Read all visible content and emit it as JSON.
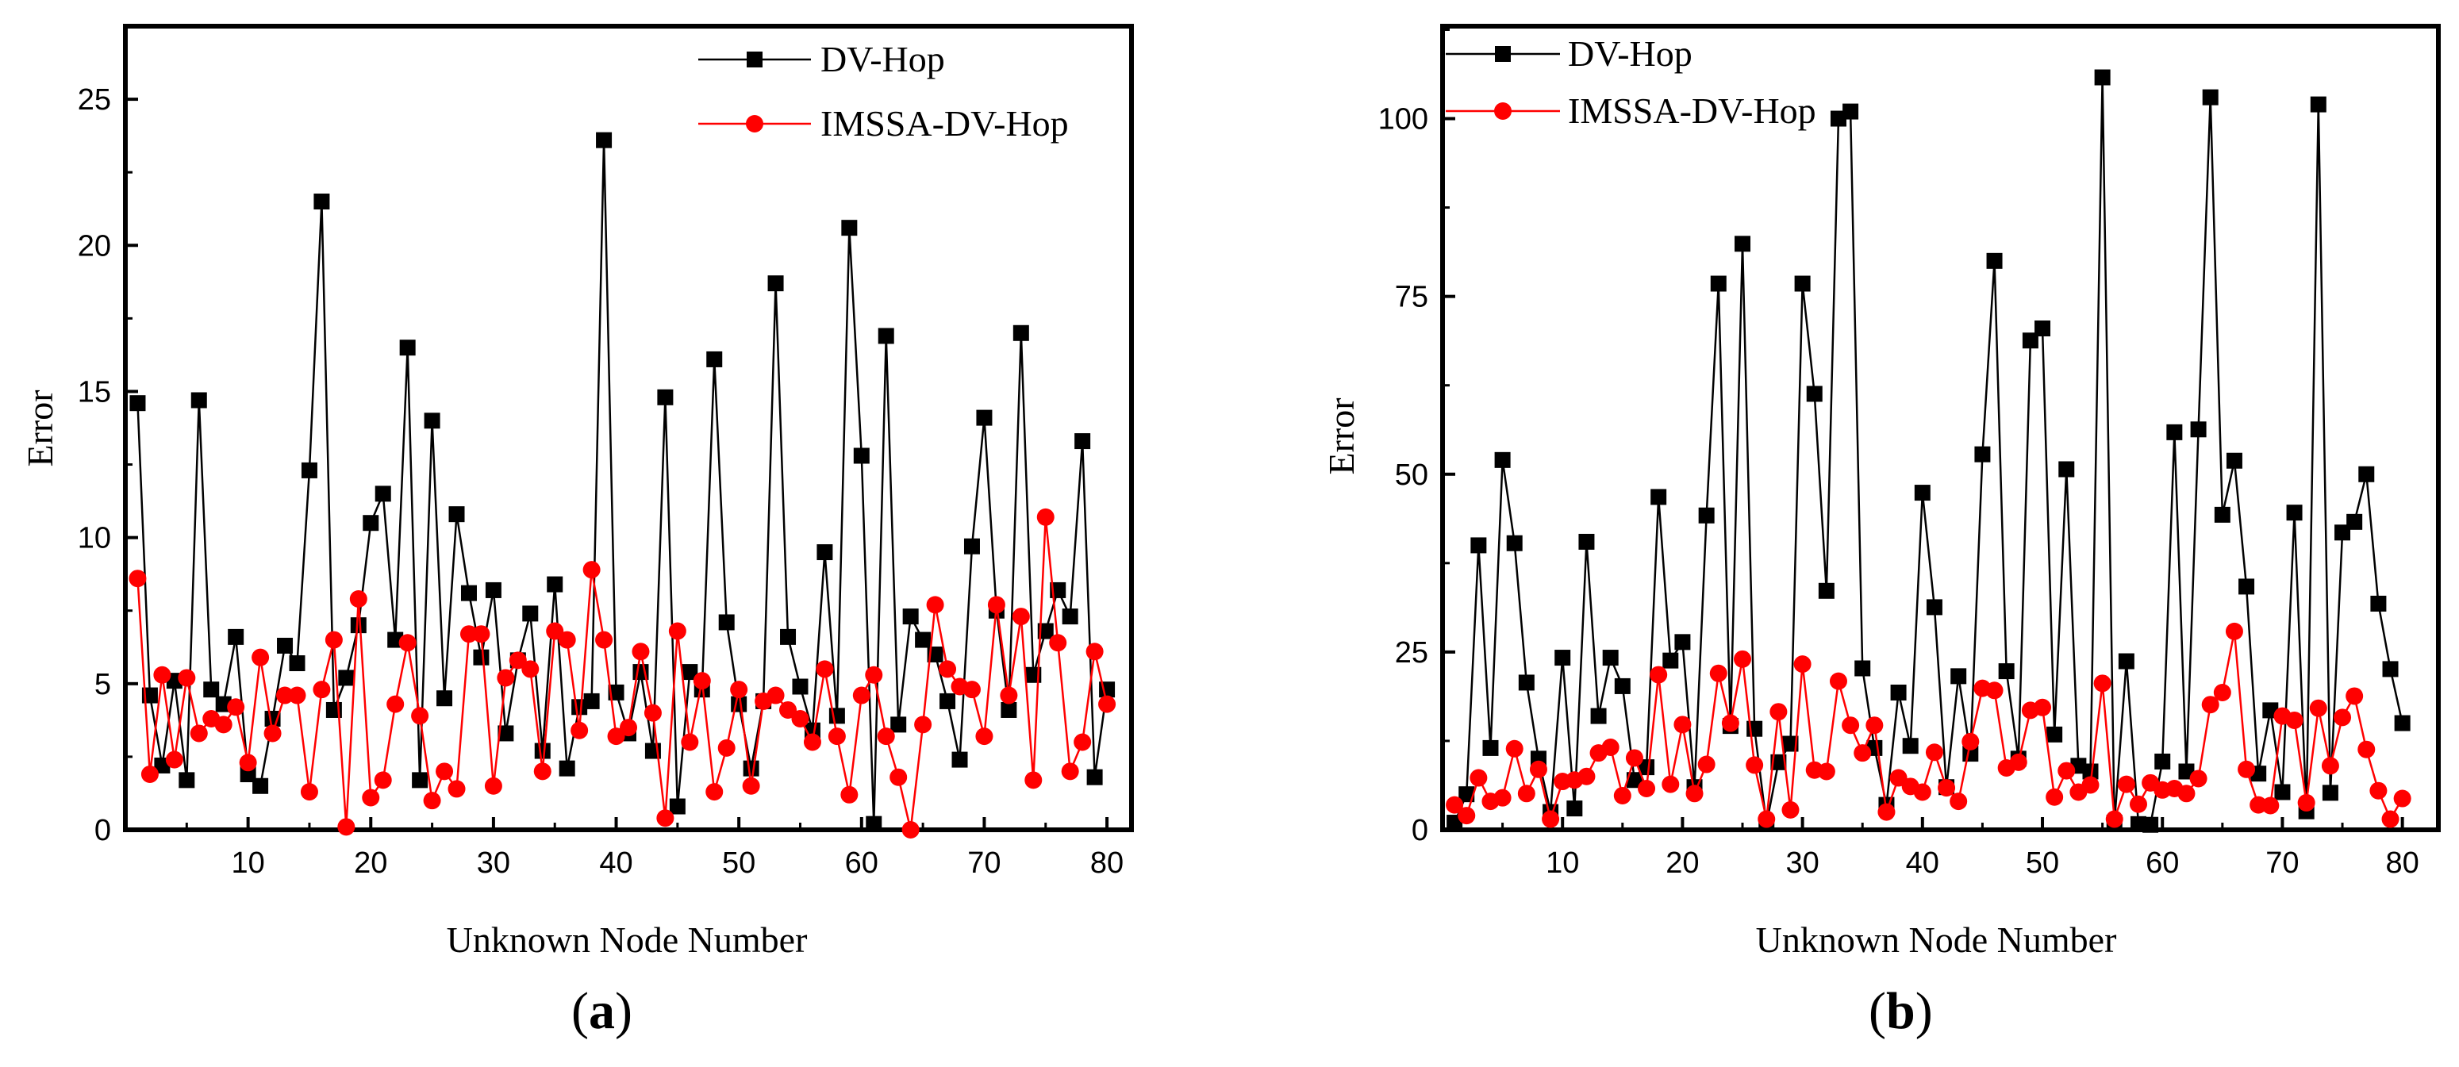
{
  "chart_data": [
    {
      "type": "line",
      "panel": "a",
      "panel_label": "a",
      "title": "",
      "xlabel": "Unknown Node Number",
      "ylabel": "Error",
      "xlim": [
        0,
        82
      ],
      "ylim": [
        0,
        27.5
      ],
      "xticks": [
        10,
        20,
        30,
        40,
        50,
        60,
        70,
        80
      ],
      "yticks": [
        0,
        5,
        10,
        15,
        20,
        25
      ],
      "legend_position": "top-right",
      "x": [
        1,
        2,
        3,
        4,
        5,
        6,
        7,
        8,
        9,
        10,
        11,
        12,
        13,
        14,
        15,
        16,
        17,
        18,
        19,
        20,
        21,
        22,
        23,
        24,
        25,
        26,
        27,
        28,
        29,
        30,
        31,
        32,
        33,
        34,
        35,
        36,
        37,
        38,
        39,
        40,
        41,
        42,
        43,
        44,
        45,
        46,
        47,
        48,
        49,
        50,
        51,
        52,
        53,
        54,
        55,
        56,
        57,
        58,
        59,
        60,
        61,
        62,
        63,
        64,
        65,
        66,
        67,
        68,
        69,
        70,
        71,
        72,
        73,
        74,
        75,
        76,
        77,
        78,
        79,
        80
      ],
      "series": [
        {
          "name": "DV-Hop",
          "color": "#000000",
          "marker": "square",
          "values": [
            14.6,
            4.6,
            2.2,
            5.1,
            1.7,
            14.7,
            4.8,
            4.3,
            6.6,
            1.9,
            1.5,
            3.8,
            6.3,
            5.7,
            12.3,
            21.5,
            4.1,
            5.2,
            7.0,
            10.5,
            11.5,
            6.5,
            16.5,
            1.7,
            14.0,
            4.5,
            10.8,
            8.1,
            5.9,
            8.2,
            3.3,
            5.8,
            7.4,
            2.7,
            8.4,
            2.1,
            4.2,
            4.4,
            23.6,
            4.7,
            3.3,
            5.4,
            2.7,
            14.8,
            0.8,
            5.4,
            4.8,
            16.1,
            7.1,
            4.3,
            2.1,
            4.4,
            18.7,
            6.6,
            4.9,
            3.4,
            9.5,
            3.9,
            20.6,
            12.8,
            0.2,
            16.9,
            3.6,
            7.3,
            6.5,
            6.0,
            4.4,
            2.4,
            9.7,
            14.1,
            7.5,
            4.1,
            17.0,
            5.3,
            6.8,
            8.2,
            7.3,
            13.3,
            1.8,
            4.8
          ]
        },
        {
          "name": "IMSSA-DV-Hop",
          "color": "#ff0000",
          "marker": "circle",
          "values": [
            8.6,
            1.9,
            5.3,
            2.4,
            5.2,
            3.3,
            3.8,
            3.6,
            4.2,
            2.3,
            5.9,
            3.3,
            4.6,
            4.6,
            1.3,
            4.8,
            6.5,
            0.1,
            7.9,
            1.1,
            1.7,
            4.3,
            6.4,
            3.9,
            1.0,
            2.0,
            1.4,
            6.7,
            6.7,
            1.5,
            5.2,
            5.8,
            5.5,
            2.0,
            6.8,
            6.5,
            3.4,
            8.9,
            6.5,
            3.2,
            3.5,
            6.1,
            4.0,
            0.4,
            6.8,
            3.0,
            5.1,
            1.3,
            2.8,
            4.8,
            1.5,
            4.4,
            4.6,
            4.1,
            3.8,
            3.0,
            5.5,
            3.2,
            1.2,
            4.6,
            5.3,
            3.2,
            1.8,
            0.0,
            3.6,
            7.7,
            5.5,
            4.9,
            4.8,
            3.2,
            7.7,
            4.6,
            7.3,
            1.7,
            10.7,
            6.4,
            2.0,
            3.0,
            6.1,
            4.3
          ]
        }
      ]
    },
    {
      "type": "line",
      "panel": "b",
      "panel_label": "b",
      "title": "",
      "xlabel": "Unknown Node Number",
      "ylabel": "Error",
      "xlim": [
        0,
        83
      ],
      "ylim": [
        0,
        113
      ],
      "xticks": [
        10,
        20,
        30,
        40,
        50,
        60,
        70,
        80
      ],
      "yticks": [
        0,
        25,
        50,
        75,
        100
      ],
      "legend_position": "top-left",
      "x": [
        1,
        2,
        3,
        4,
        5,
        6,
        7,
        8,
        9,
        10,
        11,
        12,
        13,
        14,
        15,
        16,
        17,
        18,
        19,
        20,
        21,
        22,
        23,
        24,
        25,
        26,
        27,
        28,
        29,
        30,
        31,
        32,
        33,
        34,
        35,
        36,
        37,
        38,
        39,
        40,
        41,
        42,
        43,
        44,
        45,
        46,
        47,
        48,
        49,
        50,
        51,
        52,
        53,
        54,
        55,
        56,
        57,
        58,
        59,
        60,
        61,
        62,
        63,
        64,
        65,
        66,
        67,
        68,
        69,
        70,
        71,
        72,
        73,
        74,
        75,
        76,
        77,
        78,
        79,
        80
      ],
      "series": [
        {
          "name": "DV-Hop",
          "color": "#000000",
          "marker": "square",
          "values": [
            1.0,
            5.0,
            40.0,
            11.5,
            52.0,
            40.3,
            20.7,
            10.0,
            2.5,
            24.2,
            3.0,
            40.5,
            16.0,
            24.2,
            20.2,
            7.0,
            8.8,
            46.8,
            23.8,
            26.4,
            6.0,
            44.2,
            76.8,
            14.6,
            82.4,
            14.2,
            0.8,
            9.5,
            12.1,
            76.8,
            61.3,
            33.6,
            100.0,
            101.0,
            22.7,
            11.5,
            3.5,
            19.3,
            11.8,
            47.4,
            31.3,
            6.0,
            21.6,
            10.7,
            52.8,
            80.0,
            22.3,
            10.0,
            68.8,
            70.5,
            13.4,
            50.7,
            9.0,
            8.2,
            105.8,
            1.0,
            23.7,
            0.8,
            0.7,
            9.6,
            55.9,
            8.2,
            56.3,
            103.0,
            44.3,
            51.9,
            34.2,
            7.9,
            16.8,
            5.3,
            44.6,
            2.6,
            102.0,
            5.2,
            41.8,
            43.3,
            50.0,
            31.8,
            22.6,
            15.0
          ]
        },
        {
          "name": "IMSSA-DV-Hop",
          "color": "#ff0000",
          "marker": "circle",
          "values": [
            3.5,
            2.0,
            7.3,
            4.0,
            4.5,
            11.4,
            5.1,
            8.5,
            1.5,
            6.8,
            7.0,
            7.5,
            10.8,
            11.6,
            4.8,
            10.1,
            5.8,
            21.8,
            6.4,
            14.8,
            5.1,
            9.2,
            22.0,
            15.0,
            24.0,
            9.1,
            1.5,
            16.6,
            2.8,
            23.3,
            8.4,
            8.2,
            20.9,
            14.7,
            10.8,
            14.7,
            2.5,
            7.3,
            6.1,
            5.3,
            10.9,
            5.9,
            4.0,
            12.4,
            19.9,
            19.6,
            8.7,
            9.5,
            16.8,
            17.2,
            4.6,
            8.3,
            5.3,
            6.3,
            20.6,
            1.5,
            6.4,
            3.6,
            6.6,
            5.6,
            5.8,
            5.1,
            7.2,
            17.6,
            19.3,
            27.9,
            8.5,
            3.5,
            3.4,
            16.0,
            15.4,
            3.8,
            17.1,
            9.0,
            15.8,
            18.8,
            11.3,
            5.5,
            1.5,
            4.4
          ]
        }
      ]
    }
  ]
}
